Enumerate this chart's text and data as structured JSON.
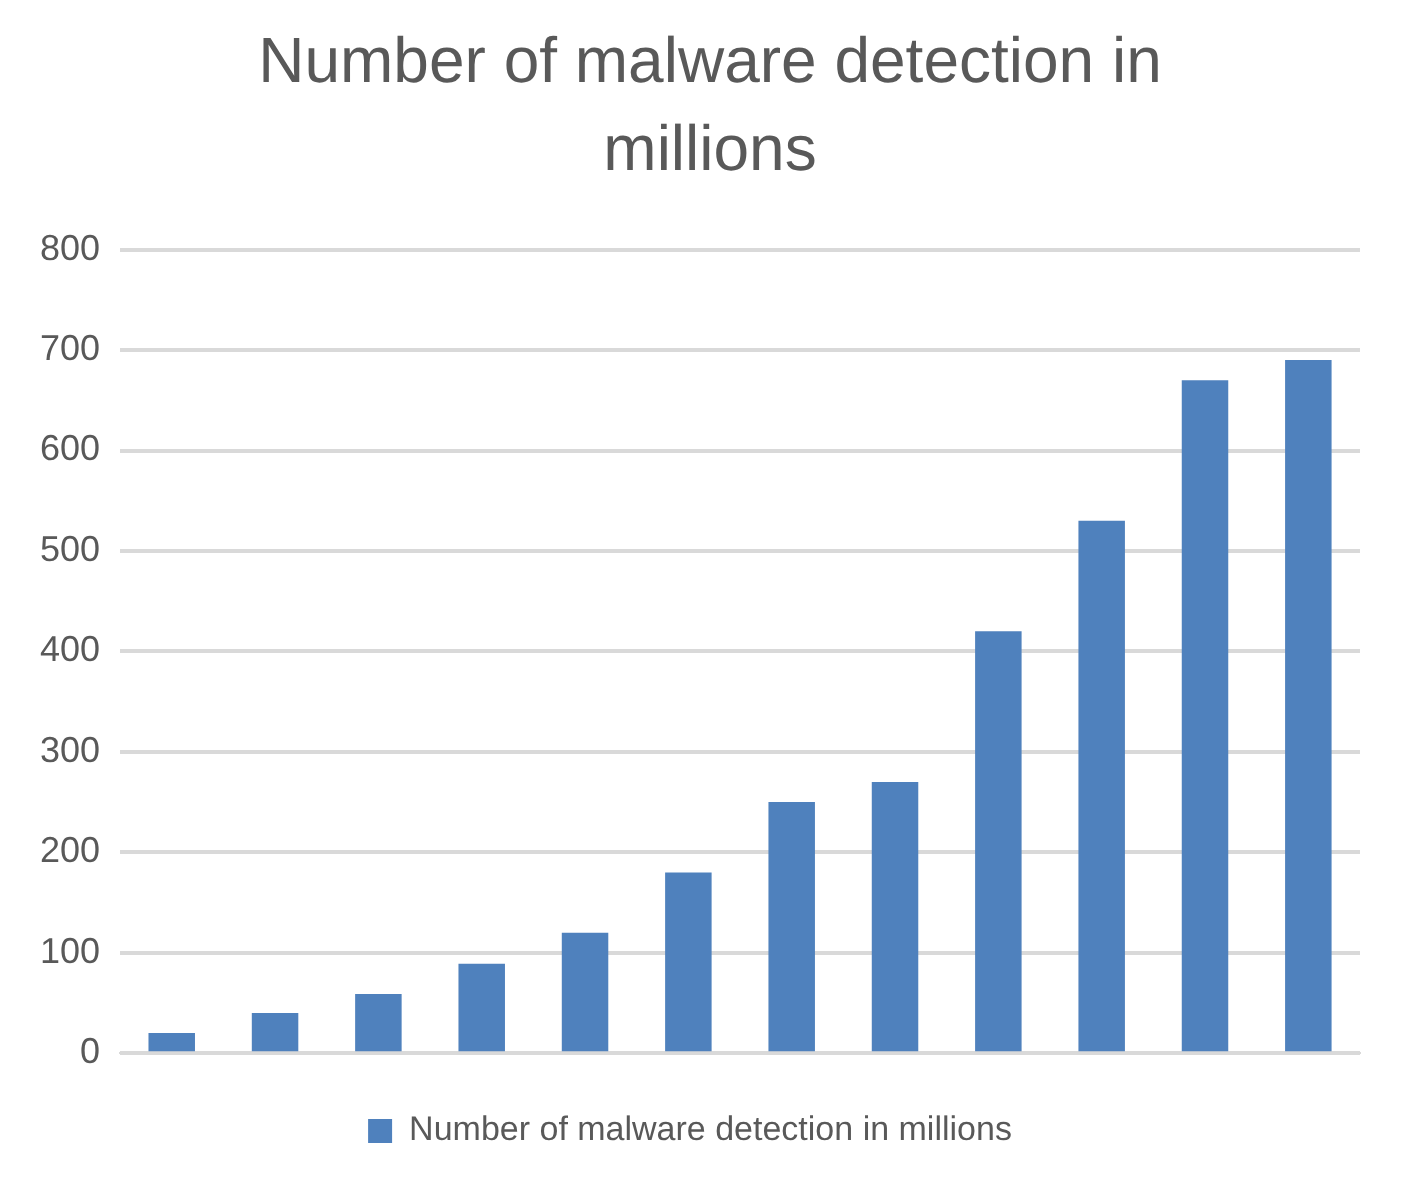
{
  "chart_data": {
    "type": "bar",
    "title": "Number of malware detection in millions",
    "categories": [
      null,
      null,
      null,
      null,
      null,
      null,
      null,
      null,
      null,
      null,
      null,
      null
    ],
    "series": [
      {
        "name": "Number of malware detection in millions",
        "color": "#4f81bd",
        "values": [
          20,
          40,
          59,
          89,
          120,
          180,
          250,
          270,
          420,
          530,
          670,
          690
        ]
      }
    ],
    "ylim": [
      0,
      800
    ],
    "yticks": [
      0,
      100,
      200,
      300,
      400,
      500,
      600,
      700,
      800
    ],
    "grid": "y",
    "legend": "bottom"
  }
}
